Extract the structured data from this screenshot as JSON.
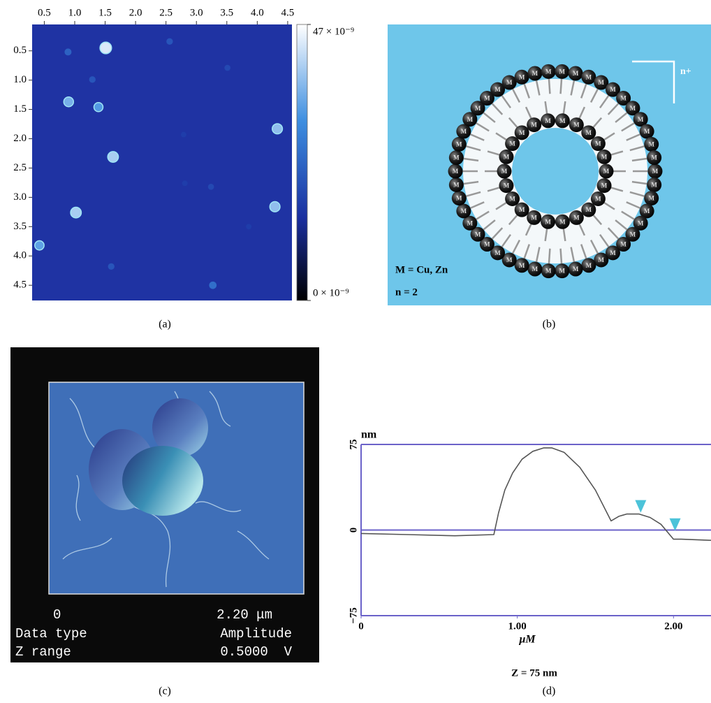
{
  "chart_data": [
    {
      "type": "heatmap",
      "xlim": [
        0.3,
        4.57
      ],
      "ylim": [
        0.05,
        4.76
      ],
      "xticks": [
        0.5,
        {
          "value": 1,
          "label": "1.0"
        },
        1.5,
        {
          "value": 2,
          "label": "2.0"
        },
        2.5,
        {
          "value": 3,
          "label": "3.0"
        },
        3.5,
        {
          "value": 4,
          "label": "4.0"
        },
        4.5
      ],
      "yticks": [
        0.5,
        {
          "value": 1,
          "label": "1.0"
        },
        1.5,
        {
          "value": 2,
          "label": "2.0"
        },
        2.5,
        {
          "value": 3,
          "label": "3.0"
        },
        3.5,
        {
          "value": 4,
          "label": "4.0"
        },
        4.5
      ],
      "background": "#1f33a3",
      "colorbar": {
        "lim": [
          0,
          47
        ],
        "colors": [
          "#000000",
          "#1a2fa0",
          "#3d8ee0",
          "#ffffff"
        ],
        "ticks": [
          {
            "value": 47,
            "label": "47 × 10⁻⁹"
          },
          {
            "value": 0,
            "label": "0 × 10⁻⁹"
          }
        ]
      },
      "particles": {
        "x": [
          1.51,
          0.9,
          1.39,
          4.33,
          1.63,
          1.02,
          4.29,
          0.42,
          0.89,
          2.56,
          1.29,
          3.51,
          2.79,
          3.24,
          3.27,
          1.6,
          2.81,
          3.86
        ],
        "y": [
          0.45,
          1.37,
          1.46,
          1.83,
          2.31,
          3.26,
          3.16,
          3.82,
          0.52,
          0.34,
          0.99,
          0.79,
          1.93,
          2.82,
          4.5,
          4.18,
          2.76,
          3.5
        ],
        "z": [
          44,
          36,
          33,
          38,
          40,
          40,
          38,
          34,
          24,
          22,
          22,
          20,
          18,
          20,
          26,
          22,
          18,
          18
        ]
      }
    },
    {
      "type": "line",
      "xlim": [
        0,
        2.24
      ],
      "ylim": [
        -75,
        75
      ],
      "xticks": [
        0,
        {
          "value": 1,
          "label": "1.00"
        },
        {
          "value": 2,
          "label": "2.00"
        }
      ],
      "yticks": [
        75,
        0,
        {
          "value": -75,
          "label": "−75"
        }
      ],
      "y_label": "nm",
      "x_label": "μM",
      "note": "Z = 75 nm",
      "color": "#555555",
      "grid_color": "#6b62c9",
      "marker_color": "#4cc3d9",
      "x": [
        0,
        0.3,
        0.6,
        0.85,
        0.88,
        0.92,
        0.97,
        1.03,
        1.1,
        1.17,
        1.22,
        1.3,
        1.4,
        1.5,
        1.6,
        1.65,
        1.7,
        1.78,
        1.85,
        1.92,
        2.0,
        2.05,
        2.24
      ],
      "values": [
        -3,
        -4,
        -5,
        -4,
        15,
        35,
        50,
        62,
        69,
        72,
        72,
        68,
        55,
        35,
        8,
        12,
        14,
        14,
        11,
        5,
        -8,
        -8,
        -9
      ],
      "markers": {
        "x": [
          1.79,
          2.01
        ],
        "y": [
          14,
          -2
        ]
      }
    }
  ],
  "diagram_b": {
    "bead_label": "M",
    "legend_metal": "M = Cu, Zn",
    "legend_n": "n = 2",
    "charge": "n+"
  },
  "image_c": {
    "scale_start": "0",
    "scale_end": "2.20 μm",
    "data_type_label": "Data type",
    "data_type": "Amplitude",
    "z_range_label": "Z range",
    "z_range": "0.5000  V"
  },
  "captions": [
    "(a)",
    "(b)",
    "(c)",
    "(d)"
  ]
}
